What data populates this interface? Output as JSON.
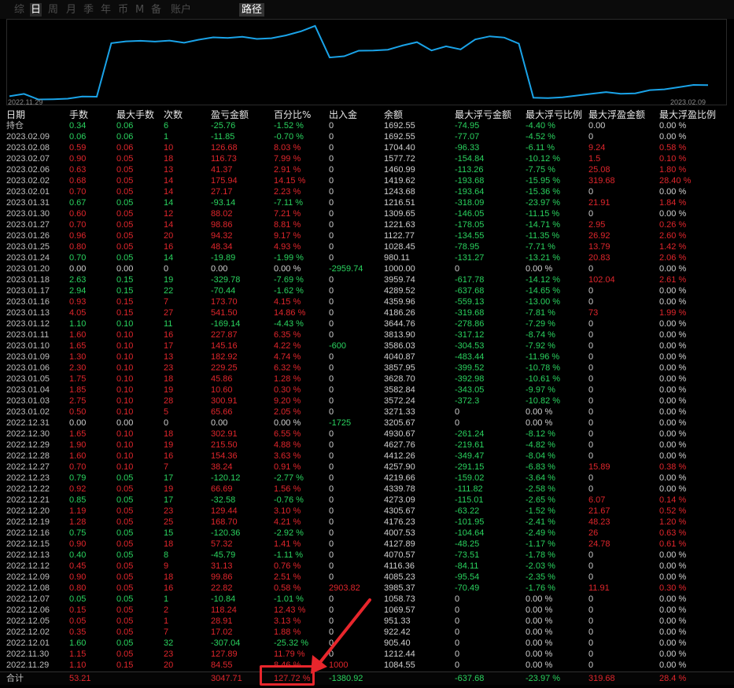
{
  "tabs": [
    "综",
    "日",
    "周",
    "月",
    "季",
    "年",
    "币",
    "M",
    "备",
    "账户"
  ],
  "active_tab": 1,
  "path_tab": "路径",
  "chart": {
    "start_label": "2022.11.29",
    "end_label": "2023.02.09",
    "line_color": "#1aa3e8",
    "values": [
      1084.55,
      1212.44,
      905.4,
      922.42,
      951.33,
      1069.57,
      1058.73,
      3985.37,
      4085.23,
      4116.36,
      4070.57,
      4127.89,
      4007.53,
      4176.23,
      4305.67,
      4273.09,
      4339.78,
      4219.66,
      4257.9,
      4412.26,
      4627.76,
      4930.67,
      3205.67,
      3271.33,
      3572.24,
      3582.84,
      3628.7,
      3857.95,
      4040.87,
      3586.03,
      3813.9,
      3644.76,
      4186.26,
      4359.96,
      4289.52,
      3959.74,
      1000.0,
      980.11,
      1028.45,
      1122.77,
      1221.63,
      1309.65,
      1216.51,
      1243.68,
      1419.62,
      1460.99,
      1577.72,
      1704.4,
      1692.55
    ]
  },
  "headers": [
    "日期",
    "手数",
    "最大手数",
    "次数",
    "盈亏金额",
    "百分比%",
    "出入金",
    "余额",
    "最大浮亏金额",
    "最大浮亏比例",
    "最大浮盈金额",
    "最大浮盈比例"
  ],
  "rows": [
    {
      "c": [
        "持仓",
        "0.34",
        "0.06",
        "6",
        "-25.76",
        "-1.52 %",
        "0",
        "1692.55",
        "-74.95",
        "-4.40 %",
        "0.00",
        "0.00 %"
      ],
      "t": "down"
    },
    {
      "c": [
        "2023.02.09",
        "0.06",
        "0.06",
        "1",
        "-11.85",
        "-0.70 %",
        "0",
        "1692.55",
        "-77.07",
        "-4.52 %",
        "0",
        "0.00 %"
      ],
      "t": "down"
    },
    {
      "c": [
        "2023.02.08",
        "0.59",
        "0.06",
        "10",
        "126.68",
        "8.03 %",
        "0",
        "1704.40",
        "-96.33",
        "-6.11 %",
        "9.24",
        "0.58 %"
      ],
      "t": "up"
    },
    {
      "c": [
        "2023.02.07",
        "0.90",
        "0.05",
        "18",
        "116.73",
        "7.99 %",
        "0",
        "1577.72",
        "-154.84",
        "-10.12 %",
        "1.5",
        "0.10 %"
      ],
      "t": "up"
    },
    {
      "c": [
        "2023.02.06",
        "0.63",
        "0.05",
        "13",
        "41.37",
        "2.91 %",
        "0",
        "1460.99",
        "-113.26",
        "-7.75 %",
        "25.08",
        "1.80 %"
      ],
      "t": "up"
    },
    {
      "c": [
        "2023.02.02",
        "0.68",
        "0.05",
        "14",
        "175.94",
        "14.15 %",
        "0",
        "1419.62",
        "-193.68",
        "-15.95 %",
        "319.68",
        "28.40 %"
      ],
      "t": "up"
    },
    {
      "c": [
        "2023.02.01",
        "0.70",
        "0.05",
        "14",
        "27.17",
        "2.23 %",
        "0",
        "1243.68",
        "-193.64",
        "-15.36 %",
        "0",
        "0.00 %"
      ],
      "t": "up"
    },
    {
      "c": [
        "2023.01.31",
        "0.67",
        "0.05",
        "14",
        "-93.14",
        "-7.11 %",
        "0",
        "1216.51",
        "-318.09",
        "-23.97 %",
        "21.91",
        "1.84 %"
      ],
      "t": "down"
    },
    {
      "c": [
        "2023.01.30",
        "0.60",
        "0.05",
        "12",
        "88.02",
        "7.21 %",
        "0",
        "1309.65",
        "-146.05",
        "-11.15 %",
        "0",
        "0.00 %"
      ],
      "t": "up"
    },
    {
      "c": [
        "2023.01.27",
        "0.70",
        "0.05",
        "14",
        "98.86",
        "8.81 %",
        "0",
        "1221.63",
        "-178.05",
        "-14.71 %",
        "2.95",
        "0.26 %"
      ],
      "t": "up"
    },
    {
      "c": [
        "2023.01.26",
        "0.96",
        "0.05",
        "20",
        "94.32",
        "9.17 %",
        "0",
        "1122.77",
        "-134.55",
        "-11.35 %",
        "26.92",
        "2.60 %"
      ],
      "t": "up"
    },
    {
      "c": [
        "2023.01.25",
        "0.80",
        "0.05",
        "16",
        "48.34",
        "4.93 %",
        "0",
        "1028.45",
        "-78.95",
        "-7.71 %",
        "13.79",
        "1.42 %"
      ],
      "t": "up"
    },
    {
      "c": [
        "2023.01.24",
        "0.70",
        "0.05",
        "14",
        "-19.89",
        "-1.99 %",
        "0",
        "980.11",
        "-131.27",
        "-13.21 %",
        "20.83",
        "2.06 %"
      ],
      "t": "down"
    },
    {
      "c": [
        "2023.01.20",
        "0.00",
        "0.00",
        "0",
        "0.00",
        "0.00 %",
        "-2959.74",
        "1000.00",
        "0",
        "0.00 %",
        "0",
        "0.00 %"
      ],
      "t": "flat"
    },
    {
      "c": [
        "2023.01.18",
        "2.63",
        "0.15",
        "19",
        "-329.78",
        "-7.69 %",
        "0",
        "3959.74",
        "-617.78",
        "-14.12 %",
        "102.04",
        "2.61 %"
      ],
      "t": "down"
    },
    {
      "c": [
        "2023.01.17",
        "2.94",
        "0.15",
        "22",
        "-70.44",
        "-1.62 %",
        "0",
        "4289.52",
        "-637.68",
        "-14.65 %",
        "0",
        "0.00 %"
      ],
      "t": "down"
    },
    {
      "c": [
        "2023.01.16",
        "0.93",
        "0.15",
        "7",
        "173.70",
        "4.15 %",
        "0",
        "4359.96",
        "-559.13",
        "-13.00 %",
        "0",
        "0.00 %"
      ],
      "t": "up"
    },
    {
      "c": [
        "2023.01.13",
        "4.05",
        "0.15",
        "27",
        "541.50",
        "14.86 %",
        "0",
        "4186.26",
        "-319.68",
        "-7.81 %",
        "73",
        "1.99 %"
      ],
      "t": "up"
    },
    {
      "c": [
        "2023.01.12",
        "1.10",
        "0.10",
        "11",
        "-169.14",
        "-4.43 %",
        "0",
        "3644.76",
        "-278.86",
        "-7.29 %",
        "0",
        "0.00 %"
      ],
      "t": "down"
    },
    {
      "c": [
        "2023.01.11",
        "1.60",
        "0.10",
        "16",
        "227.87",
        "6.35 %",
        "0",
        "3813.90",
        "-317.12",
        "-8.74 %",
        "0",
        "0.00 %"
      ],
      "t": "up"
    },
    {
      "c": [
        "2023.01.10",
        "1.65",
        "0.10",
        "17",
        "145.16",
        "4.22 %",
        "-600",
        "3586.03",
        "-304.53",
        "-7.92 %",
        "0",
        "0.00 %"
      ],
      "t": "up"
    },
    {
      "c": [
        "2023.01.09",
        "1.30",
        "0.10",
        "13",
        "182.92",
        "4.74 %",
        "0",
        "4040.87",
        "-483.44",
        "-11.96 %",
        "0",
        "0.00 %"
      ],
      "t": "up"
    },
    {
      "c": [
        "2023.01.06",
        "2.30",
        "0.10",
        "23",
        "229.25",
        "6.32 %",
        "0",
        "3857.95",
        "-399.52",
        "-10.78 %",
        "0",
        "0.00 %"
      ],
      "t": "up"
    },
    {
      "c": [
        "2023.01.05",
        "1.75",
        "0.10",
        "18",
        "45.86",
        "1.28 %",
        "0",
        "3628.70",
        "-392.98",
        "-10.61 %",
        "0",
        "0.00 %"
      ],
      "t": "up"
    },
    {
      "c": [
        "2023.01.04",
        "1.85",
        "0.10",
        "19",
        "10.60",
        "0.30 %",
        "0",
        "3582.84",
        "-343.05",
        "-9.97 %",
        "0",
        "0.00 %"
      ],
      "t": "up"
    },
    {
      "c": [
        "2023.01.03",
        "2.75",
        "0.10",
        "28",
        "300.91",
        "9.20 %",
        "0",
        "3572.24",
        "-372.3",
        "-10.82 %",
        "0",
        "0.00 %"
      ],
      "t": "up"
    },
    {
      "c": [
        "2023.01.02",
        "0.50",
        "0.10",
        "5",
        "65.66",
        "2.05 %",
        "0",
        "3271.33",
        "0",
        "0.00 %",
        "0",
        "0.00 %"
      ],
      "t": "up"
    },
    {
      "c": [
        "2022.12.31",
        "0.00",
        "0.00",
        "0",
        "0.00",
        "0.00 %",
        "-1725",
        "3205.67",
        "0",
        "0.00 %",
        "0",
        "0.00 %"
      ],
      "t": "flat"
    },
    {
      "c": [
        "2022.12.30",
        "1.65",
        "0.10",
        "18",
        "302.91",
        "6.55 %",
        "0",
        "4930.67",
        "-261.24",
        "-8.12 %",
        "0",
        "0.00 %"
      ],
      "t": "up"
    },
    {
      "c": [
        "2022.12.29",
        "1.90",
        "0.10",
        "19",
        "215.50",
        "4.88 %",
        "0",
        "4627.76",
        "-219.61",
        "-4.82 %",
        "0",
        "0.00 %"
      ],
      "t": "up"
    },
    {
      "c": [
        "2022.12.28",
        "1.60",
        "0.10",
        "16",
        "154.36",
        "3.63 %",
        "0",
        "4412.26",
        "-349.47",
        "-8.04 %",
        "0",
        "0.00 %"
      ],
      "t": "up"
    },
    {
      "c": [
        "2022.12.27",
        "0.70",
        "0.10",
        "7",
        "38.24",
        "0.91 %",
        "0",
        "4257.90",
        "-291.15",
        "-6.83 %",
        "15.89",
        "0.38 %"
      ],
      "t": "up"
    },
    {
      "c": [
        "2022.12.23",
        "0.79",
        "0.05",
        "17",
        "-120.12",
        "-2.77 %",
        "0",
        "4219.66",
        "-159.02",
        "-3.64 %",
        "0",
        "0.00 %"
      ],
      "t": "down"
    },
    {
      "c": [
        "2022.12.22",
        "0.92",
        "0.05",
        "19",
        "66.69",
        "1.56 %",
        "0",
        "4339.78",
        "-111.82",
        "-2.58 %",
        "0",
        "0.00 %"
      ],
      "t": "up"
    },
    {
      "c": [
        "2022.12.21",
        "0.85",
        "0.05",
        "17",
        "-32.58",
        "-0.76 %",
        "0",
        "4273.09",
        "-115.01",
        "-2.65 %",
        "6.07",
        "0.14 %"
      ],
      "t": "down"
    },
    {
      "c": [
        "2022.12.20",
        "1.19",
        "0.05",
        "23",
        "129.44",
        "3.10 %",
        "0",
        "4305.67",
        "-63.22",
        "-1.52 %",
        "21.67",
        "0.52 %"
      ],
      "t": "up"
    },
    {
      "c": [
        "2022.12.19",
        "1.28",
        "0.05",
        "25",
        "168.70",
        "4.21 %",
        "0",
        "4176.23",
        "-101.95",
        "-2.41 %",
        "48.23",
        "1.20 %"
      ],
      "t": "up"
    },
    {
      "c": [
        "2022.12.16",
        "0.75",
        "0.05",
        "15",
        "-120.36",
        "-2.92 %",
        "0",
        "4007.53",
        "-104.64",
        "-2.49 %",
        "26",
        "0.63 %"
      ],
      "t": "down"
    },
    {
      "c": [
        "2022.12.15",
        "0.90",
        "0.05",
        "18",
        "57.32",
        "1.41 %",
        "0",
        "4127.89",
        "-48.25",
        "-1.17 %",
        "24.78",
        "0.61 %"
      ],
      "t": "up"
    },
    {
      "c": [
        "2022.12.13",
        "0.40",
        "0.05",
        "8",
        "-45.79",
        "-1.11 %",
        "0",
        "4070.57",
        "-73.51",
        "-1.78 %",
        "0",
        "0.00 %"
      ],
      "t": "down"
    },
    {
      "c": [
        "2022.12.12",
        "0.45",
        "0.05",
        "9",
        "31.13",
        "0.76 %",
        "0",
        "4116.36",
        "-84.11",
        "-2.03 %",
        "0",
        "0.00 %"
      ],
      "t": "up"
    },
    {
      "c": [
        "2022.12.09",
        "0.90",
        "0.05",
        "18",
        "99.86",
        "2.51 %",
        "0",
        "4085.23",
        "-95.54",
        "-2.35 %",
        "0",
        "0.00 %"
      ],
      "t": "up"
    },
    {
      "c": [
        "2022.12.08",
        "0.80",
        "0.05",
        "16",
        "22.82",
        "0.58 %",
        "2903.82",
        "3985.37",
        "-70.49",
        "-1.76 %",
        "11.91",
        "0.30 %"
      ],
      "t": "up"
    },
    {
      "c": [
        "2022.12.07",
        "0.05",
        "0.05",
        "1",
        "-10.84",
        "-1.01 %",
        "0",
        "1058.73",
        "0",
        "0.00 %",
        "0",
        "0.00 %"
      ],
      "t": "down"
    },
    {
      "c": [
        "2022.12.06",
        "0.15",
        "0.05",
        "2",
        "118.24",
        "12.43 %",
        "0",
        "1069.57",
        "0",
        "0.00 %",
        "0",
        "0.00 %"
      ],
      "t": "up"
    },
    {
      "c": [
        "2022.12.05",
        "0.05",
        "0.05",
        "1",
        "28.91",
        "3.13 %",
        "0",
        "951.33",
        "0",
        "0.00 %",
        "0",
        "0.00 %"
      ],
      "t": "up"
    },
    {
      "c": [
        "2022.12.02",
        "0.35",
        "0.05",
        "7",
        "17.02",
        "1.88 %",
        "0",
        "922.42",
        "0",
        "0.00 %",
        "0",
        "0.00 %"
      ],
      "t": "up"
    },
    {
      "c": [
        "2022.12.01",
        "1.60",
        "0.05",
        "32",
        "-307.04",
        "-25.32 %",
        "0",
        "905.40",
        "0",
        "0.00 %",
        "0",
        "0.00 %"
      ],
      "t": "down"
    },
    {
      "c": [
        "2022.11.30",
        "1.15",
        "0.05",
        "23",
        "127.89",
        "11.79 %",
        "0",
        "1212.44",
        "0",
        "0.00 %",
        "0",
        "0.00 %"
      ],
      "t": "up"
    },
    {
      "c": [
        "2022.11.29",
        "1.10",
        "0.15",
        "20",
        "84.55",
        "8.46 %",
        "1000",
        "1084.55",
        "0",
        "0.00 %",
        "0",
        "0.00 %"
      ],
      "t": "up"
    }
  ],
  "total": {
    "c": [
      "合计",
      "53.21",
      "",
      "",
      "3047.71",
      "127.72 %",
      "-1380.92",
      "",
      "-637.68",
      "-23.97 %",
      "319.68",
      "28.4 %"
    ]
  },
  "colors": {
    "up": "#e0262c",
    "down": "#2ad35f",
    "annotation": "#e8262c"
  }
}
